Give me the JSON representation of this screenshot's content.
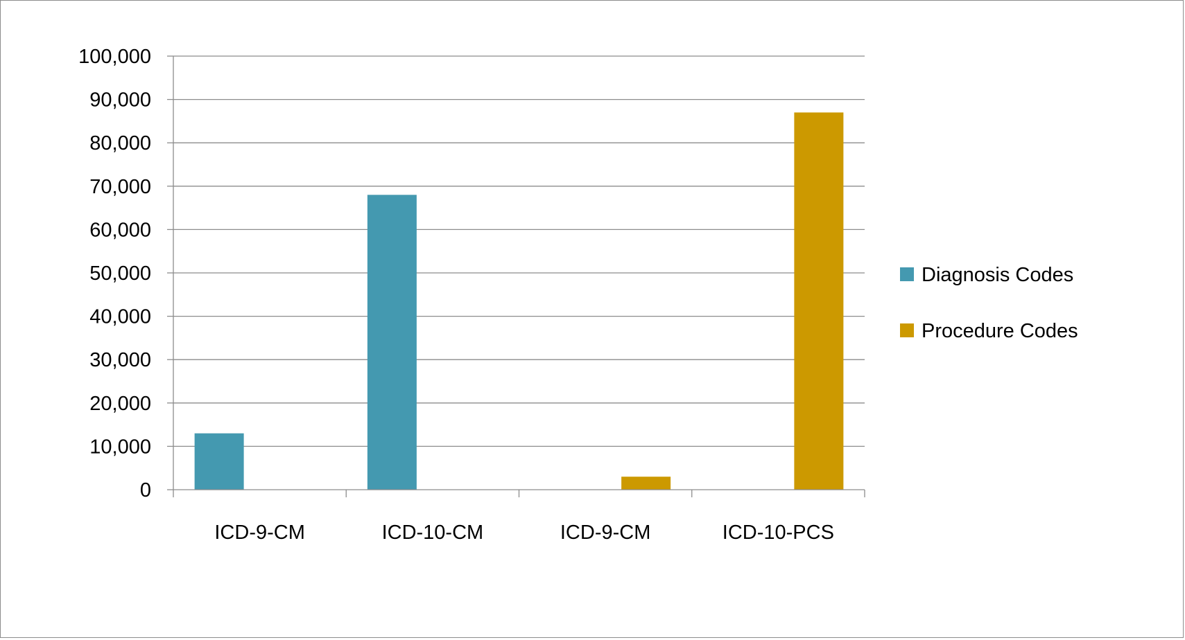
{
  "chart_data": {
    "type": "bar",
    "title": "",
    "xlabel": "",
    "ylabel": "",
    "categories": [
      "ICD-9-CM",
      "ICD-10-CM",
      "ICD-9-CM",
      "ICD-10-PCS"
    ],
    "ylim": [
      0,
      100000
    ],
    "yticks": [
      0,
      10000,
      20000,
      30000,
      40000,
      50000,
      60000,
      70000,
      80000,
      90000,
      100000
    ],
    "ytick_labels": [
      "0",
      "10,000",
      "20,000",
      "30,000",
      "40,000",
      "50,000",
      "60,000",
      "70,000",
      "80,000",
      "90,000",
      "100,000"
    ],
    "grid": "horizontal",
    "legend_position": "right",
    "series": [
      {
        "name": "Diagnosis Codes",
        "color": "#4499B0",
        "values": [
          13000,
          68000,
          null,
          null
        ]
      },
      {
        "name": "Procedure Codes",
        "color": "#CC9900",
        "values": [
          null,
          null,
          3000,
          87000
        ]
      }
    ]
  }
}
